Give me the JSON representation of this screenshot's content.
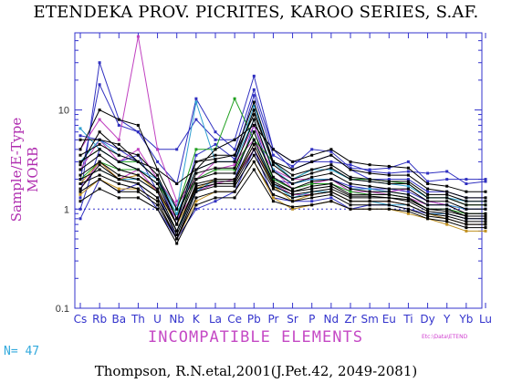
{
  "chart_data": {
    "type": "line",
    "title": "ETENDEKA PROV. PICRITES, KAROO SERIES, S.AF.",
    "ylabel": "Sample/E-Type MORB",
    "xlabel": "INCOMPATIBLE ELEMENTS",
    "yscale": "log",
    "ylim": [
      0.1,
      60
    ],
    "yticks": [
      "0.1",
      "1",
      "10"
    ],
    "reference_line": 1,
    "categories": [
      "Cs",
      "Rb",
      "Ba",
      "Th",
      "U",
      "Nb",
      "K",
      "La",
      "Ce",
      "Pb",
      "Pr",
      "Sr",
      "P",
      "Nd",
      "Zr",
      "Sm",
      "Eu",
      "Ti",
      "Dy",
      "Y",
      "Yb",
      "Lu"
    ],
    "series": [
      {
        "color": "#3030c0",
        "values": [
          5.5,
          5,
          4,
          3,
          2,
          0.7,
          3.5,
          4.5,
          3.2,
          14,
          3.5,
          2.7,
          4,
          3.8,
          2.6,
          2.5,
          2.6,
          3,
          1.9,
          2,
          2,
          2
        ]
      },
      {
        "color": "#3030c0",
        "values": [
          1.3,
          30,
          8,
          6,
          4,
          4,
          8,
          5,
          5,
          22,
          4,
          2.5,
          3,
          3.5,
          2.5,
          2,
          2,
          2,
          1.5,
          1.5,
          1.3,
          1.3
        ]
      },
      {
        "color": "#3030c0",
        "values": [
          2,
          18,
          7,
          6,
          3,
          1.8,
          13,
          6,
          4,
          16,
          4,
          3,
          3,
          3,
          2.8,
          2.4,
          2.3,
          2.4,
          2.3,
          2.4,
          1.8,
          1.9
        ]
      },
      {
        "color": "#3030c0",
        "values": [
          1,
          4,
          3,
          3.5,
          1.5,
          0.5,
          1.5,
          2,
          2,
          7,
          2,
          1.8,
          2,
          2,
          1.7,
          1.6,
          1.6,
          1.5,
          1.2,
          1.1,
          1,
          1
        ]
      },
      {
        "color": "#3030c0",
        "values": [
          0.8,
          2,
          1.5,
          1.8,
          1,
          0.5,
          1,
          1.2,
          1.5,
          4,
          1.3,
          1.2,
          1.2,
          1.3,
          1,
          1.1,
          1.1,
          1,
          0.9,
          0.8,
          0.7,
          0.7
        ]
      },
      {
        "color": "#c040c0",
        "values": [
          4,
          8,
          5,
          55,
          4,
          1.2,
          2,
          3,
          3,
          5,
          2.5,
          2,
          2,
          2,
          1.6,
          1.6,
          1.5,
          1.6,
          1.2,
          1.1,
          1,
          1
        ]
      },
      {
        "color": "#c040c0",
        "values": [
          2.5,
          5,
          3,
          4,
          2,
          1.1,
          2,
          2.5,
          2.8,
          7,
          2.5,
          1.6,
          1.8,
          2,
          1.5,
          1.5,
          1.4,
          1.3,
          1.1,
          1.1,
          0.9,
          0.9
        ]
      },
      {
        "color": "#c040c0",
        "values": [
          1.6,
          3,
          2,
          2.5,
          1.5,
          0.8,
          1.5,
          1.8,
          2,
          4,
          1.8,
          1.4,
          1.4,
          1.5,
          1.2,
          1.2,
          1.2,
          1.1,
          0.9,
          0.9,
          0.8,
          0.8
        ]
      },
      {
        "color": "#20a020",
        "values": [
          3,
          4,
          3,
          3,
          2,
          1,
          4,
          4,
          13,
          5,
          3,
          2,
          2.5,
          2.5,
          2,
          2,
          1.9,
          1.8,
          1.3,
          1.3,
          1.1,
          1.1
        ]
      },
      {
        "color": "#20a020",
        "values": [
          2,
          3,
          2.5,
          2.5,
          1.8,
          0.9,
          2,
          2.5,
          2.5,
          6,
          2,
          1.6,
          1.8,
          1.8,
          1.5,
          1.4,
          1.4,
          1.3,
          1,
          1,
          0.9,
          0.9
        ]
      },
      {
        "color": "#30a0d0",
        "values": [
          6.5,
          4,
          3,
          2.5,
          2,
          1,
          12,
          3,
          3,
          11,
          3,
          2,
          2.5,
          2.5,
          2,
          1.9,
          1.8,
          1.7,
          1.3,
          1.3,
          1.2,
          1.2
        ]
      },
      {
        "color": "#30a0d0",
        "values": [
          3,
          5,
          3.5,
          3,
          2,
          0.9,
          2.5,
          3,
          3,
          8,
          2.5,
          1.8,
          2,
          2,
          1.6,
          1.6,
          1.5,
          1.4,
          1.1,
          1.1,
          1,
          1
        ]
      },
      {
        "color": "#30a0d0",
        "values": [
          2,
          2.5,
          2,
          2,
          1.5,
          0.6,
          1.5,
          2,
          2,
          5,
          1.8,
          1.3,
          1.5,
          1.5,
          1.2,
          1.2,
          1.1,
          1.1,
          0.9,
          0.9,
          0.8,
          0.8
        ]
      },
      {
        "color": "#c09020",
        "values": [
          1.4,
          2,
          1.6,
          1.6,
          1.2,
          0.5,
          1.2,
          1.5,
          1.5,
          3,
          1.3,
          1,
          1.1,
          1.2,
          1,
          1,
          1,
          0.9,
          0.8,
          0.7,
          0.6,
          0.6
        ]
      },
      {
        "color": "#c09020",
        "values": [
          1.8,
          3,
          2,
          2.2,
          1.5,
          0.7,
          1.6,
          2,
          2,
          4.5,
          1.7,
          1.2,
          1.4,
          1.5,
          1.2,
          1.2,
          1.2,
          1.1,
          0.9,
          0.8,
          0.7,
          0.7
        ]
      },
      {
        "color": "#000000",
        "values": [
          5,
          5,
          4.5,
          3,
          2.5,
          1,
          3,
          3.5,
          3.5,
          9,
          3,
          2.5,
          3,
          3.5,
          2.5,
          2.3,
          2.2,
          2.2,
          1.6,
          1.5,
          1.3,
          1.3
        ]
      },
      {
        "color": "#000000",
        "values": [
          4,
          10,
          8,
          7,
          2.5,
          1.8,
          2.5,
          4,
          5,
          7,
          4,
          3,
          3.5,
          4,
          3,
          2.8,
          2.7,
          2.6,
          1.8,
          1.7,
          1.5,
          1.5
        ]
      },
      {
        "color": "#000000",
        "values": [
          3.5,
          4.5,
          3.5,
          3,
          2,
          0.8,
          2.5,
          3,
          3,
          10,
          2.8,
          2,
          2.3,
          2.6,
          2,
          1.9,
          1.8,
          1.8,
          1.3,
          1.3,
          1.1,
          1.1
        ]
      },
      {
        "color": "#000000",
        "values": [
          3,
          4,
          3,
          2.5,
          1.8,
          0.7,
          2.3,
          2.6,
          2.6,
          8,
          2.4,
          1.8,
          2.1,
          2.3,
          1.8,
          1.7,
          1.6,
          1.6,
          1.2,
          1.2,
          1,
          1
        ]
      },
      {
        "color": "#000000",
        "values": [
          2.5,
          3.5,
          2.5,
          2.2,
          1.6,
          0.7,
          2,
          2.3,
          2.3,
          6,
          2.1,
          1.6,
          1.9,
          2,
          1.6,
          1.5,
          1.5,
          1.4,
          1.1,
          1.1,
          0.9,
          0.9
        ]
      },
      {
        "color": "#000000",
        "values": [
          2.2,
          3,
          2.2,
          2,
          1.5,
          0.6,
          1.8,
          2,
          2,
          5,
          1.9,
          1.5,
          1.7,
          1.8,
          1.4,
          1.4,
          1.4,
          1.3,
          1,
          1,
          0.85,
          0.85
        ]
      },
      {
        "color": "#000000",
        "values": [
          2,
          2.5,
          2,
          1.8,
          1.3,
          0.55,
          1.6,
          1.8,
          1.8,
          4,
          1.7,
          1.4,
          1.5,
          1.6,
          1.3,
          1.3,
          1.3,
          1.2,
          0.95,
          0.9,
          0.8,
          0.8
        ]
      },
      {
        "color": "#000000",
        "values": [
          1.8,
          2.2,
          1.8,
          1.6,
          1.2,
          0.5,
          1.5,
          1.7,
          1.7,
          3.5,
          1.6,
          1.3,
          1.4,
          1.5,
          1.2,
          1.2,
          1.2,
          1.1,
          0.9,
          0.85,
          0.75,
          0.75
        ]
      },
      {
        "color": "#000000",
        "values": [
          1.5,
          2,
          1.5,
          1.5,
          1.1,
          0.5,
          1.3,
          1.5,
          1.5,
          3,
          1.4,
          1.2,
          1.3,
          1.4,
          1.1,
          1.1,
          1.1,
          1,
          0.85,
          0.8,
          0.7,
          0.7
        ]
      },
      {
        "color": "#000000",
        "values": [
          1.2,
          1.6,
          1.3,
          1.3,
          1,
          0.45,
          1.1,
          1.3,
          1.3,
          2.5,
          1.2,
          1.05,
          1.1,
          1.2,
          1,
          1,
          1,
          0.95,
          0.8,
          0.75,
          0.65,
          0.65
        ]
      },
      {
        "color": "#000000",
        "values": [
          2.8,
          6,
          4,
          3.5,
          2.2,
          0.8,
          3,
          3.2,
          3.5,
          12,
          3,
          2.2,
          2.5,
          2.8,
          2.1,
          2,
          1.9,
          1.9,
          1.4,
          1.4,
          1.2,
          1.2
        ]
      },
      {
        "color": "#000000",
        "values": [
          1.6,
          2.8,
          2,
          1.8,
          1.3,
          0.6,
          1.7,
          1.9,
          1.9,
          4.5,
          1.8,
          1.5,
          1.6,
          1.7,
          1.35,
          1.35,
          1.3,
          1.25,
          1,
          0.95,
          0.85,
          0.85
        ]
      }
    ]
  },
  "n_label": "N= 47",
  "watermark": "Etc:\\Data\\ETEND",
  "citation": "Thompson, R.N.etal,2001(J.Pet.42, 2049-2081)"
}
